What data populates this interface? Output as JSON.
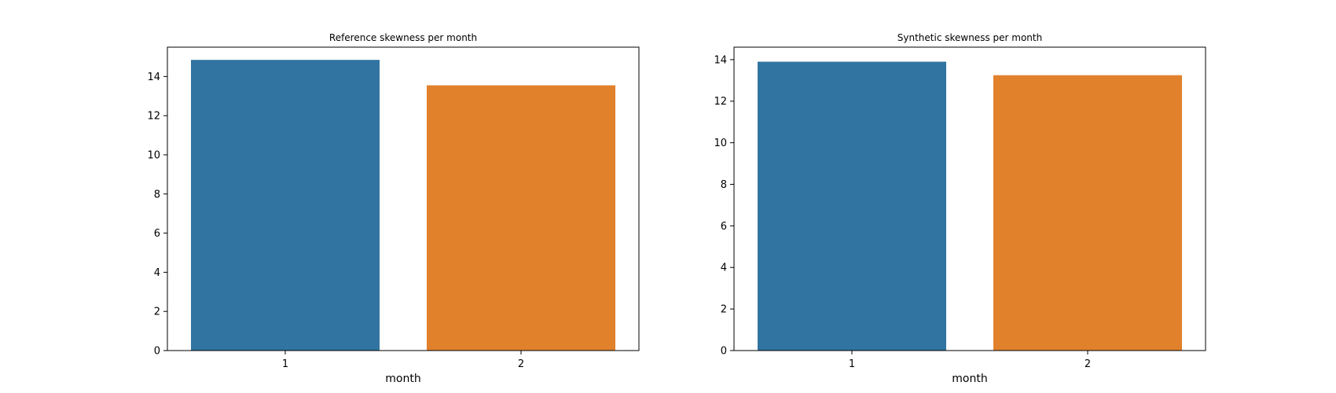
{
  "chart_data": [
    {
      "type": "bar",
      "title": "Reference skewness per month",
      "xlabel": "month",
      "ylabel": "",
      "categories": [
        "1",
        "2"
      ],
      "values": [
        14.85,
        13.55
      ],
      "colors": [
        "#3274a1",
        "#e1812c"
      ],
      "ylim": [
        0,
        15.5
      ],
      "yticks": [
        0,
        2,
        4,
        6,
        8,
        10,
        12,
        14
      ],
      "grid": false
    },
    {
      "type": "bar",
      "title": "Synthetic skewness per month",
      "xlabel": "month",
      "ylabel": "",
      "categories": [
        "1",
        "2"
      ],
      "values": [
        13.9,
        13.25
      ],
      "colors": [
        "#3274a1",
        "#e1812c"
      ],
      "ylim": [
        0,
        14.6
      ],
      "yticks": [
        0,
        2,
        4,
        6,
        8,
        10,
        12,
        14
      ],
      "grid": false
    }
  ]
}
